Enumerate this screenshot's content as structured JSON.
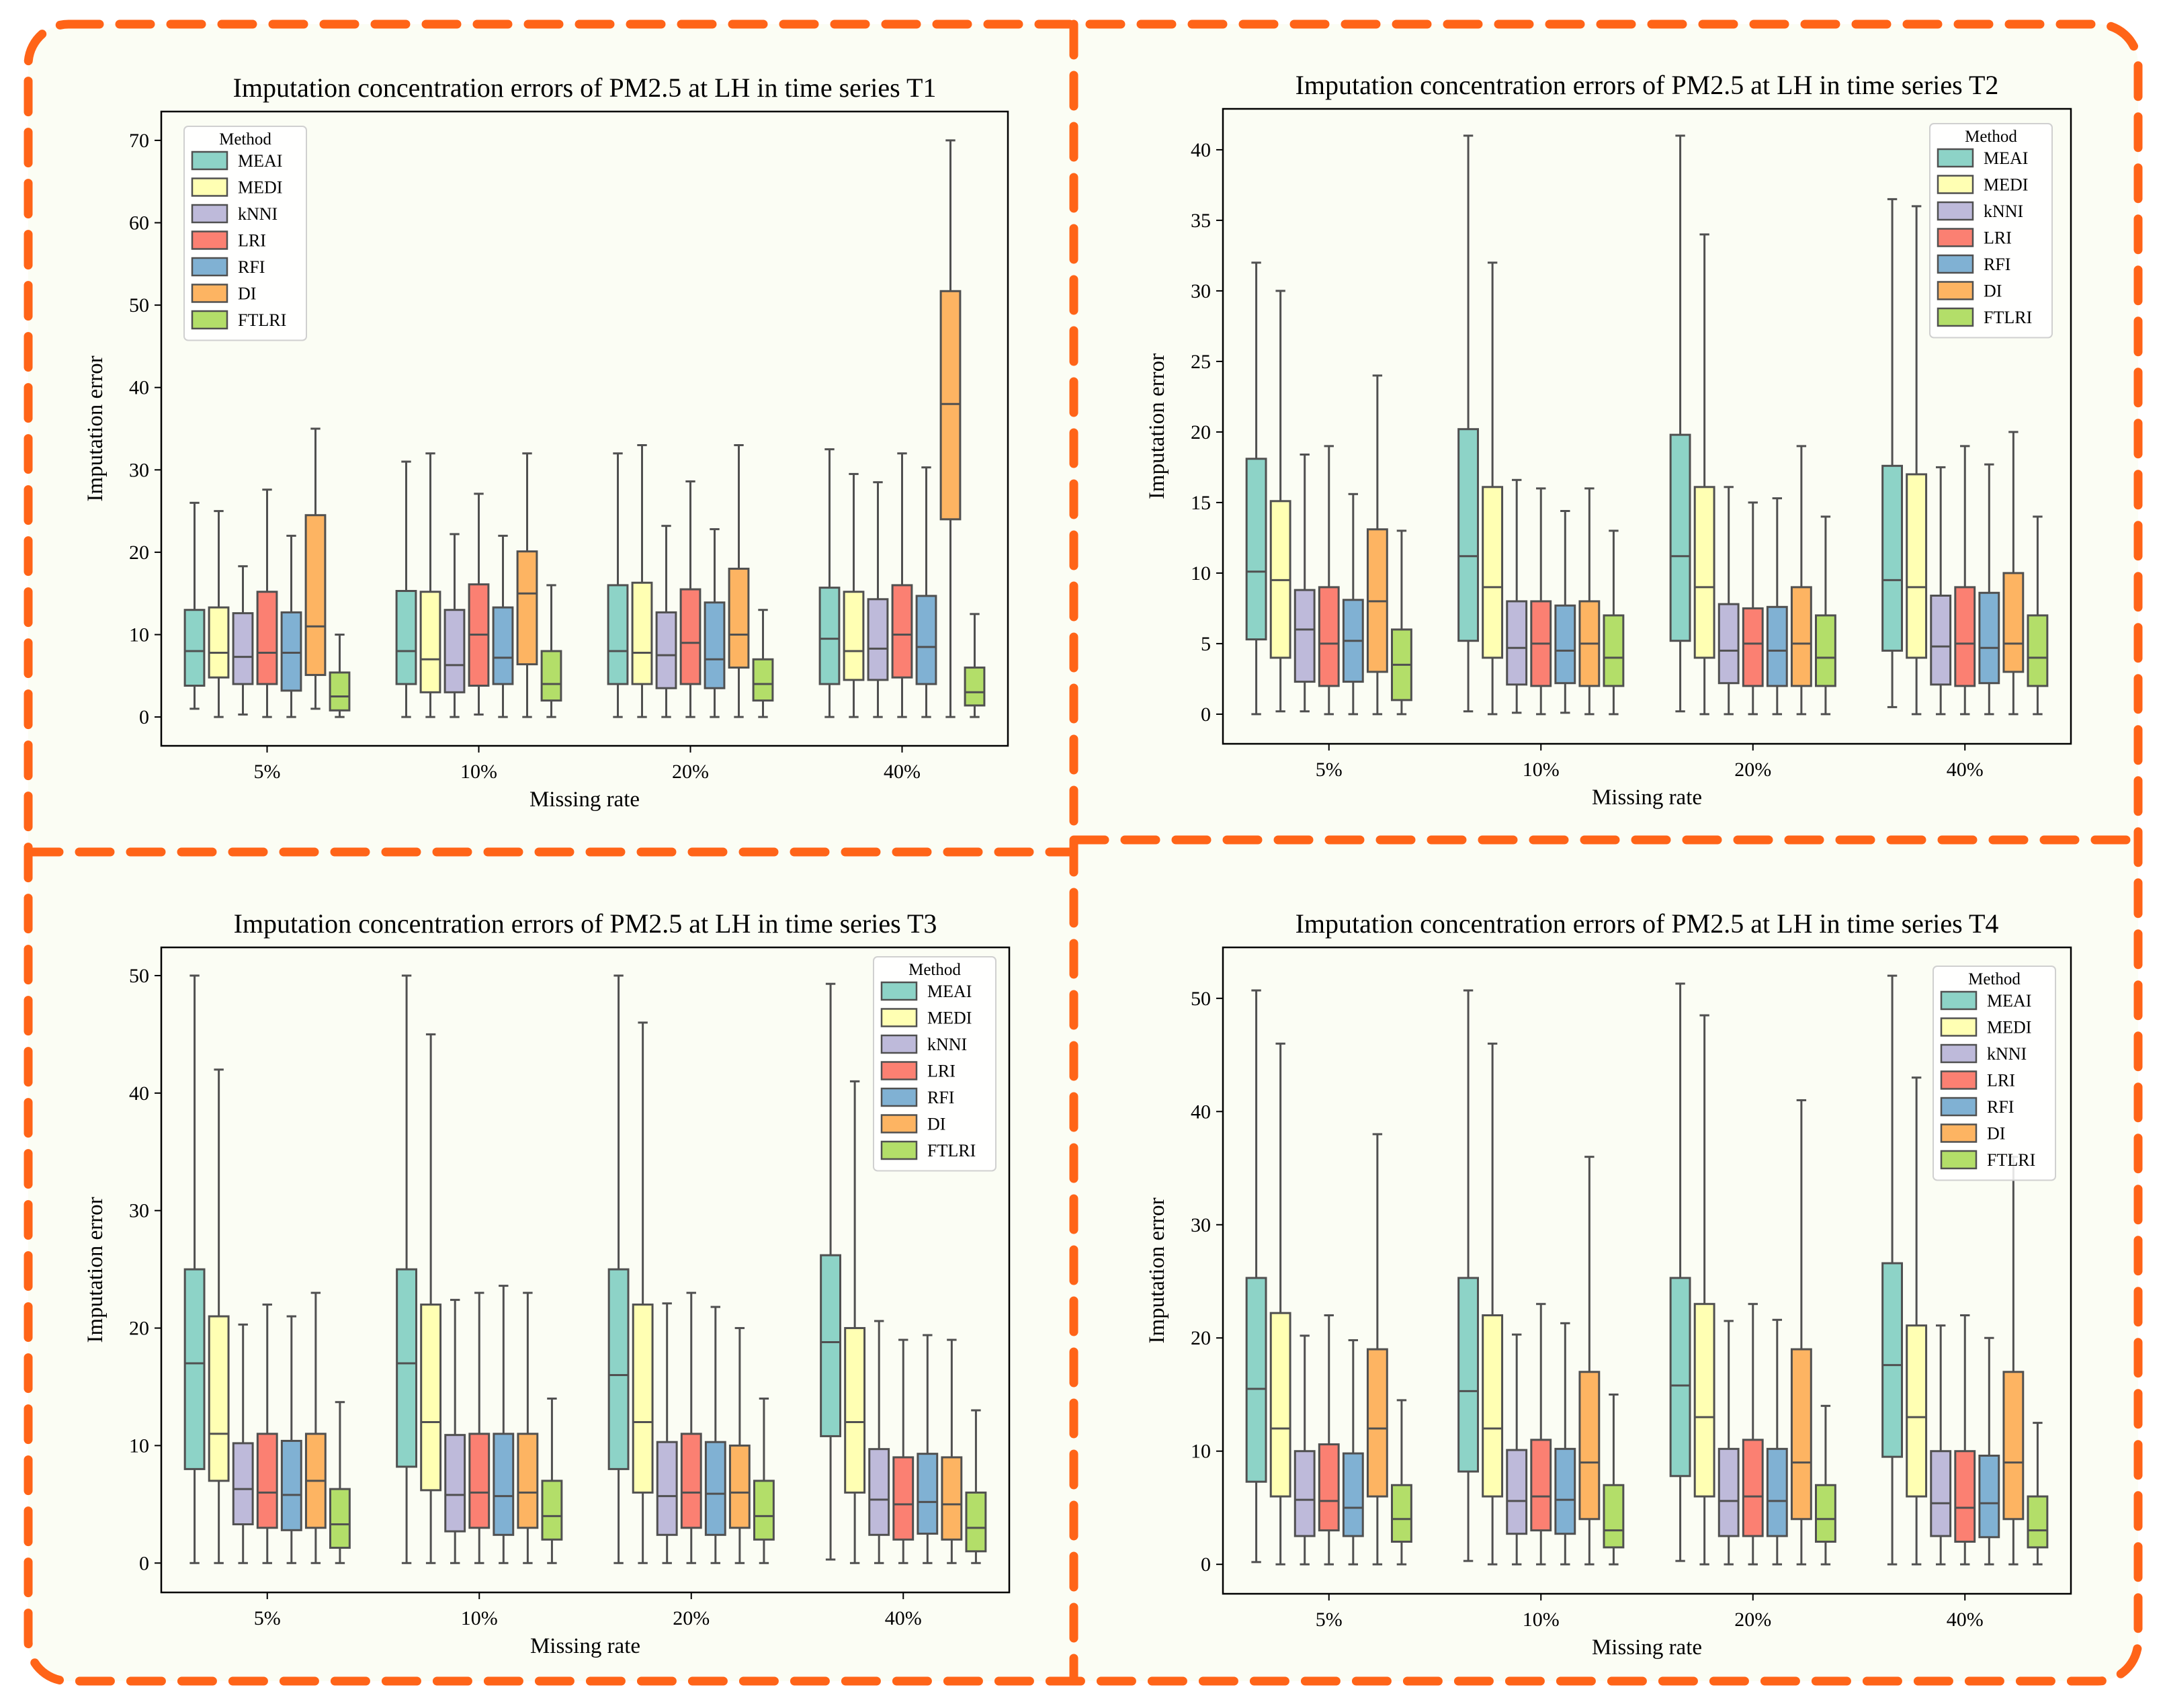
{
  "colors": {
    "panel_background": "#fbfdf4",
    "dash_border": "#ff6418",
    "box_edge": "#505050",
    "methods": [
      "#8dd3c7",
      "#ffffb3",
      "#bebada",
      "#fb8072",
      "#80b1d3",
      "#fdb462",
      "#b3de69"
    ]
  },
  "chart_data": [
    {
      "type": "box",
      "title": "Imputation concentration errors of PM2.5 at LH in time series T1",
      "xlabel": "Missing rate",
      "ylabel": "Imputation error",
      "categories": [
        "5%",
        "10%",
        "20%",
        "40%"
      ],
      "ylim": [
        -3.5,
        73.5
      ],
      "yticks": [
        0,
        10,
        20,
        30,
        40,
        50,
        60,
        70
      ],
      "legend": {
        "title": "Method",
        "position": "top-left"
      },
      "series": [
        {
          "name": "MEAI",
          "boxes": [
            [
              1,
              3.8,
              8,
              13,
              26
            ],
            [
              0,
              4,
              8,
              15.3,
              31
            ],
            [
              0,
              4,
              8,
              16,
              32
            ],
            [
              0,
              4,
              9.5,
              15.7,
              32.5
            ]
          ]
        },
        {
          "name": "MEDI",
          "boxes": [
            [
              0,
              4.8,
              7.8,
              13.3,
              25
            ],
            [
              0,
              3,
              7,
              15.2,
              32
            ],
            [
              0,
              4,
              7.8,
              16.3,
              33
            ],
            [
              0,
              4.5,
              8,
              15.2,
              29.5
            ]
          ]
        },
        {
          "name": "kNNI",
          "boxes": [
            [
              0.3,
              4,
              7.3,
              12.6,
              18.3
            ],
            [
              0,
              3,
              6.3,
              13,
              22.2
            ],
            [
              0,
              3.5,
              7.5,
              12.7,
              23.2
            ],
            [
              0,
              4.5,
              8.3,
              14.3,
              28.5
            ]
          ]
        },
        {
          "name": "LRI",
          "boxes": [
            [
              0,
              4,
              7.8,
              15.2,
              27.6
            ],
            [
              0.3,
              3.8,
              10,
              16.1,
              27.1
            ],
            [
              0,
              4,
              9,
              15.5,
              28.6
            ],
            [
              0,
              4.8,
              10,
              16,
              32
            ]
          ]
        },
        {
          "name": "RFI",
          "boxes": [
            [
              0,
              3.2,
              7.8,
              12.7,
              22
            ],
            [
              0,
              4,
              7.2,
              13.3,
              22
            ],
            [
              0,
              3.5,
              7,
              13.9,
              22.8
            ],
            [
              0,
              4,
              8.5,
              14.7,
              30.3
            ]
          ]
        },
        {
          "name": "DI",
          "boxes": [
            [
              1,
              5.1,
              11,
              24.5,
              35
            ],
            [
              0,
              6.4,
              15,
              20.1,
              32
            ],
            [
              0,
              6,
              10,
              18,
              33
            ],
            [
              0,
              24,
              38,
              51.7,
              70
            ]
          ]
        },
        {
          "name": "FTLRI",
          "boxes": [
            [
              0,
              0.8,
              2.5,
              5.4,
              10
            ],
            [
              0,
              2,
              4,
              8,
              16
            ],
            [
              0,
              2,
              4,
              7,
              13
            ],
            [
              0,
              1.4,
              3,
              6,
              12.5
            ]
          ]
        }
      ]
    },
    {
      "type": "box",
      "title": "Imputation concentration errors of PM2.5 at LH in time series T2",
      "xlabel": "Missing rate",
      "ylabel": "Imputation error",
      "categories": [
        "5%",
        "10%",
        "20%",
        "40%"
      ],
      "ylim": [
        -2.1,
        42.9
      ],
      "yticks": [
        0,
        5,
        10,
        15,
        20,
        25,
        30,
        35,
        40
      ],
      "legend": {
        "title": "Method",
        "position": "top-right"
      },
      "series": [
        {
          "name": "MEAI",
          "boxes": [
            [
              0,
              5.3,
              10.1,
              18.1,
              32
            ],
            [
              0.2,
              5.2,
              11.2,
              20.2,
              41
            ],
            [
              0.2,
              5.2,
              11.2,
              19.8,
              41
            ],
            [
              0.5,
              4.5,
              9.5,
              17.6,
              36.5
            ]
          ]
        },
        {
          "name": "MEDI",
          "boxes": [
            [
              0.2,
              4,
              9.5,
              15.1,
              30
            ],
            [
              0,
              4,
              9,
              16.1,
              32
            ],
            [
              0,
              4,
              9,
              16.1,
              34
            ],
            [
              0,
              4,
              9,
              17,
              36
            ]
          ]
        },
        {
          "name": "kNNI",
          "boxes": [
            [
              0.2,
              2.3,
              6,
              8.8,
              18.4
            ],
            [
              0.1,
              2.1,
              4.7,
              8,
              16.6
            ],
            [
              0,
              2.2,
              4.5,
              7.8,
              16.1
            ],
            [
              0,
              2.1,
              4.8,
              8.4,
              17.5
            ]
          ]
        },
        {
          "name": "LRI",
          "boxes": [
            [
              0,
              2,
              5,
              9,
              19
            ],
            [
              0,
              2,
              5,
              8,
              16
            ],
            [
              0,
              2,
              5,
              7.5,
              15
            ],
            [
              0,
              2,
              5,
              9,
              19
            ]
          ]
        },
        {
          "name": "RFI",
          "boxes": [
            [
              0,
              2.3,
              5.2,
              8.1,
              15.6
            ],
            [
              0.1,
              2.2,
              4.5,
              7.7,
              14.4
            ],
            [
              0,
              2,
              4.5,
              7.6,
              15.3
            ],
            [
              0,
              2.2,
              4.7,
              8.6,
              17.7
            ]
          ]
        },
        {
          "name": "DI",
          "boxes": [
            [
              0,
              3,
              8,
              13.1,
              24
            ],
            [
              0,
              2,
              5,
              8,
              16
            ],
            [
              0,
              2,
              5,
              9,
              19
            ],
            [
              0,
              3,
              5,
              10,
              20
            ]
          ]
        },
        {
          "name": "FTLRI",
          "boxes": [
            [
              0,
              1,
              3.5,
              6,
              13
            ],
            [
              0,
              2,
              4,
              7,
              13
            ],
            [
              0,
              2,
              4,
              7,
              14
            ],
            [
              0,
              2,
              4,
              7,
              14
            ]
          ]
        }
      ]
    },
    {
      "type": "box",
      "title": "Imputation concentration errors of PM2.5 at LH in time series T3",
      "xlabel": "Missing rate",
      "ylabel": "Imputation error",
      "categories": [
        "5%",
        "10%",
        "20%",
        "40%"
      ],
      "ylim": [
        -2.5,
        52.4
      ],
      "yticks": [
        0,
        10,
        20,
        30,
        40,
        50
      ],
      "legend": {
        "title": "Method",
        "position": "top-right"
      },
      "series": [
        {
          "name": "MEAI",
          "boxes": [
            [
              0,
              8,
              17,
              25,
              50
            ],
            [
              0,
              8.2,
              17,
              25,
              50
            ],
            [
              0,
              8,
              16,
              25,
              50
            ],
            [
              0.3,
              10.8,
              18.8,
              26.2,
              49.3
            ]
          ]
        },
        {
          "name": "MEDI",
          "boxes": [
            [
              0,
              7,
              11,
              21,
              42
            ],
            [
              0,
              6.2,
              12,
              22,
              45
            ],
            [
              0,
              6,
              12,
              22,
              46
            ],
            [
              0,
              6,
              12,
              20,
              41
            ]
          ]
        },
        {
          "name": "kNNI",
          "boxes": [
            [
              0,
              3.3,
              6.3,
              10.2,
              20.3
            ],
            [
              0,
              2.7,
              5.8,
              10.9,
              22.4
            ],
            [
              0,
              2.4,
              5.7,
              10.3,
              22.1
            ],
            [
              0,
              2.4,
              5.4,
              9.7,
              20.6
            ]
          ]
        },
        {
          "name": "LRI",
          "boxes": [
            [
              0,
              3,
              6,
              11,
              22
            ],
            [
              0,
              3,
              6,
              11,
              23
            ],
            [
              0,
              3,
              6,
              11,
              23
            ],
            [
              0,
              2,
              5,
              9,
              19
            ]
          ]
        },
        {
          "name": "RFI",
          "boxes": [
            [
              0,
              2.8,
              5.8,
              10.4,
              21
            ],
            [
              0,
              2.4,
              5.7,
              11,
              23.6
            ],
            [
              0,
              2.4,
              5.9,
              10.3,
              21.8
            ],
            [
              0,
              2.5,
              5.2,
              9.3,
              19.4
            ]
          ]
        },
        {
          "name": "DI",
          "boxes": [
            [
              0,
              3,
              7,
              11,
              23
            ],
            [
              0,
              3,
              6,
              11,
              23
            ],
            [
              0,
              3,
              6,
              10,
              20
            ],
            [
              0,
              2,
              5,
              9,
              19
            ]
          ]
        },
        {
          "name": "FTLRI",
          "boxes": [
            [
              0,
              1.3,
              3.3,
              6.3,
              13.7
            ],
            [
              0,
              2,
              4,
              7,
              14
            ],
            [
              0,
              2,
              4,
              7,
              14
            ],
            [
              0,
              1,
              3,
              6,
              13
            ]
          ]
        }
      ]
    },
    {
      "type": "box",
      "title": "Imputation concentration errors of PM2.5 at LH in time series T4",
      "xlabel": "Missing rate",
      "ylabel": "Imputation error",
      "categories": [
        "5%",
        "10%",
        "20%",
        "40%"
      ],
      "ylim": [
        -2.6,
        54.5
      ],
      "yticks": [
        0,
        10,
        20,
        30,
        40,
        50
      ],
      "legend": {
        "title": "Method",
        "position": "top-right"
      },
      "series": [
        {
          "name": "MEAI",
          "boxes": [
            [
              0.2,
              7.3,
              15.5,
              25.3,
              50.7
            ],
            [
              0.3,
              8.2,
              15.3,
              25.3,
              50.7
            ],
            [
              0.3,
              7.8,
              15.8,
              25.3,
              51.3
            ],
            [
              0,
              9.5,
              17.6,
              26.6,
              52
            ]
          ]
        },
        {
          "name": "MEDI",
          "boxes": [
            [
              0,
              6,
              12,
              22.2,
              46
            ],
            [
              0,
              6,
              12,
              22,
              46
            ],
            [
              0,
              6,
              13,
              23,
              48.5
            ],
            [
              0,
              6,
              13,
              21.1,
              43
            ]
          ]
        },
        {
          "name": "kNNI",
          "boxes": [
            [
              0,
              2.5,
              5.7,
              10,
              20.2
            ],
            [
              0,
              2.7,
              5.6,
              10.1,
              20.3
            ],
            [
              0,
              2.5,
              5.6,
              10.2,
              21.5
            ],
            [
              0,
              2.5,
              5.4,
              10,
              21.1
            ]
          ]
        },
        {
          "name": "LRI",
          "boxes": [
            [
              0,
              3,
              5.6,
              10.6,
              22
            ],
            [
              0,
              3,
              6,
              11,
              23
            ],
            [
              0,
              2.5,
              6,
              11,
              23
            ],
            [
              0,
              2,
              5,
              10,
              22
            ]
          ]
        },
        {
          "name": "RFI",
          "boxes": [
            [
              0,
              2.5,
              5,
              9.8,
              19.8
            ],
            [
              0,
              2.7,
              5.7,
              10.2,
              21.3
            ],
            [
              0,
              2.5,
              5.6,
              10.2,
              21.6
            ],
            [
              0,
              2.4,
              5.4,
              9.6,
              20
            ]
          ]
        },
        {
          "name": "DI",
          "boxes": [
            [
              0,
              6,
              12,
              19,
              38
            ],
            [
              0,
              4,
              9,
              17,
              36
            ],
            [
              0,
              4,
              9,
              19,
              41
            ],
            [
              0,
              4,
              9,
              17,
              36
            ]
          ]
        },
        {
          "name": "FTLRI",
          "boxes": [
            [
              0,
              2,
              4,
              7,
              14.5
            ],
            [
              0,
              1.5,
              3,
              7,
              15
            ],
            [
              0,
              2,
              4,
              7,
              14
            ],
            [
              0,
              1.5,
              3,
              6,
              12.5
            ]
          ]
        }
      ]
    }
  ]
}
